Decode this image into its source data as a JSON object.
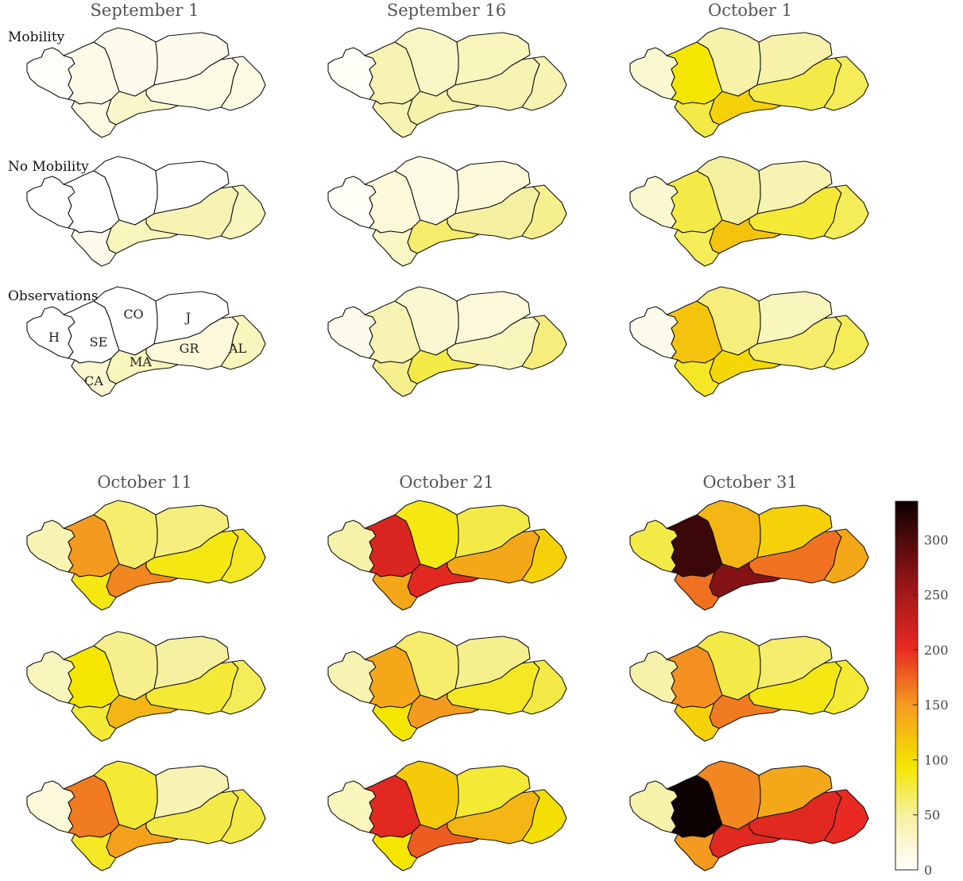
{
  "dates": [
    "September 1",
    "September 16",
    "October 1",
    "October 11",
    "October 21",
    "October 31"
  ],
  "row_labels": [
    "Mobility",
    "No Mobility",
    "Observations"
  ],
  "provinces": [
    "H",
    "SE",
    "CO",
    "J",
    "GR",
    "AL",
    "MA",
    "CA"
  ],
  "colorbar": {
    "ticks": [
      0,
      50,
      100,
      150,
      200,
      250,
      300
    ],
    "max": 335
  },
  "values": {
    "September 1": {
      "Mobility": {
        "H": 2,
        "SE": 12,
        "CO": 10,
        "J": 10,
        "GR": 14,
        "AL": 14,
        "MA": 28,
        "CA": 14
      },
      "No Mobility": {
        "H": 0,
        "SE": 0,
        "CO": 0,
        "J": 0,
        "GR": 40,
        "AL": 35,
        "MA": 35,
        "CA": 10
      },
      "Observations": {
        "H": 0,
        "SE": 0,
        "CO": 0,
        "J": 0,
        "GR": 20,
        "AL": 35,
        "MA": 35,
        "CA": 25
      }
    },
    "September 16": {
      "Mobility": {
        "H": 5,
        "SE": 40,
        "CO": 30,
        "J": 35,
        "GR": 40,
        "AL": 40,
        "MA": 45,
        "CA": 40
      },
      "No Mobility": {
        "H": 5,
        "SE": 20,
        "CO": 15,
        "J": 20,
        "GR": 50,
        "AL": 55,
        "MA": 65,
        "CA": 30
      },
      "Observations": {
        "H": 10,
        "SE": 40,
        "CO": 25,
        "J": 20,
        "GR": 35,
        "AL": 60,
        "MA": 75,
        "CA": 55
      }
    },
    "October 1": {
      "Mobility": {
        "H": 25,
        "SE": 95,
        "CO": 45,
        "J": 45,
        "GR": 75,
        "AL": 70,
        "MA": 110,
        "CA": 75
      },
      "No Mobility": {
        "H": 25,
        "SE": 75,
        "CO": 50,
        "J": 40,
        "GR": 80,
        "AL": 70,
        "MA": 120,
        "CA": 70
      },
      "Observations": {
        "H": 10,
        "SE": 120,
        "CO": 60,
        "J": 35,
        "GR": 65,
        "AL": 70,
        "MA": 105,
        "CA": 85
      }
    },
    "October 11": {
      "Mobility": {
        "H": 40,
        "SE": 150,
        "CO": 65,
        "J": 60,
        "GR": 90,
        "AL": 85,
        "MA": 160,
        "CA": 90
      },
      "No Mobility": {
        "H": 35,
        "SE": 95,
        "CO": 55,
        "J": 50,
        "GR": 80,
        "AL": 70,
        "MA": 130,
        "CA": 80
      },
      "Observations": {
        "H": 20,
        "SE": 165,
        "CO": 80,
        "J": 40,
        "GR": 75,
        "AL": 75,
        "MA": 145,
        "CA": 85
      }
    },
    "October 21": {
      "Mobility": {
        "H": 45,
        "SE": 215,
        "CO": 90,
        "J": 75,
        "GR": 140,
        "AL": 110,
        "MA": 210,
        "CA": 140
      },
      "No Mobility": {
        "H": 40,
        "SE": 140,
        "CO": 65,
        "J": 55,
        "GR": 85,
        "AL": 75,
        "MA": 150,
        "CA": 95
      },
      "Observations": {
        "H": 35,
        "SE": 210,
        "CO": 115,
        "J": 80,
        "GR": 130,
        "AL": 100,
        "MA": 180,
        "CA": 95
      }
    },
    "October 31": {
      "Mobility": {
        "H": 75,
        "SE": 310,
        "CO": 130,
        "J": 110,
        "GR": 170,
        "AL": 140,
        "MA": 270,
        "CA": 170
      },
      "No Mobility": {
        "H": 45,
        "SE": 155,
        "CO": 75,
        "J": 65,
        "GR": 90,
        "AL": 80,
        "MA": 165,
        "CA": 110
      },
      "Observations": {
        "H": 45,
        "SE": 335,
        "CO": 160,
        "J": 140,
        "GR": 210,
        "AL": 205,
        "MA": 210,
        "CA": 150
      }
    }
  }
}
